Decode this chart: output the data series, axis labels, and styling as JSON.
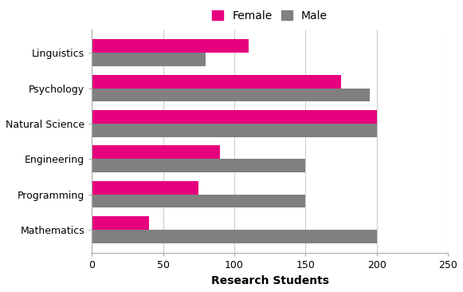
{
  "categories": [
    "Mathematics",
    "Programming",
    "Engineering",
    "Natural Science",
    "Psychology",
    "Linguistics"
  ],
  "female_values": [
    40,
    75,
    90,
    200,
    175,
    110
  ],
  "male_values": [
    200,
    150,
    150,
    200,
    195,
    80
  ],
  "female_color": "#E6007E",
  "male_color": "#808080",
  "xlabel": "Research Students",
  "xlim": [
    0,
    250
  ],
  "xticks": [
    0,
    50,
    100,
    150,
    200,
    250
  ],
  "legend_labels": [
    "Female",
    "Male"
  ],
  "background_color": "#ffffff",
  "bar_height": 0.38,
  "label_fontsize": 10,
  "tick_fontsize": 9,
  "legend_fontsize": 10
}
